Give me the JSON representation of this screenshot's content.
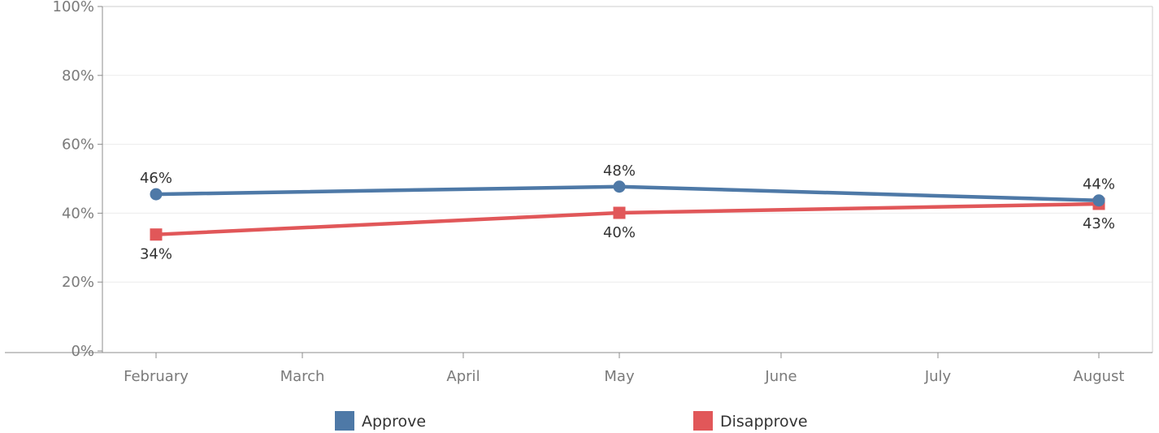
{
  "chart_data": {
    "type": "line",
    "categories": [
      "February",
      "March",
      "April",
      "May",
      "June",
      "July",
      "August"
    ],
    "yticks": [
      "0%",
      "20%",
      "40%",
      "60%",
      "80%",
      "100%"
    ],
    "ylim": [
      0,
      100
    ],
    "grid": true,
    "legend_position": "bottom",
    "series": [
      {
        "name": "Approve",
        "color": "#4e79a7",
        "marker": "circle",
        "points": [
          {
            "x": "February",
            "y": 45.5,
            "label": "46%"
          },
          {
            "x": "May",
            "y": 47.7,
            "label": "48%"
          },
          {
            "x": "August",
            "y": 43.7,
            "label": "44%"
          }
        ]
      },
      {
        "name": "Disapprove",
        "color": "#e15759",
        "marker": "square",
        "points": [
          {
            "x": "February",
            "y": 33.8,
            "label": "34%"
          },
          {
            "x": "May",
            "y": 40.1,
            "label": "40%"
          },
          {
            "x": "August",
            "y": 42.7,
            "label": "43%"
          }
        ]
      }
    ]
  }
}
